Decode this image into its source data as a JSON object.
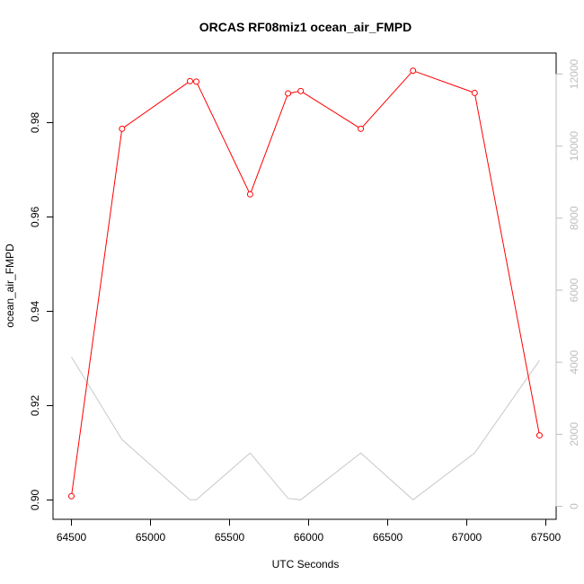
{
  "chart_data": {
    "type": "line",
    "title": "ORCAS RF08miz1 ocean_air_FMPD",
    "xlabel": "UTC Seconds",
    "ylabel": "ocean_air_FMPD",
    "xlim": [
      64500,
      67500
    ],
    "ylim": [
      0.9,
      0.992
    ],
    "y2lim": [
      0,
      12500
    ],
    "x_ticks": [
      "64500",
      "65000",
      "65500",
      "66000",
      "66500",
      "67000",
      "67500"
    ],
    "y_ticks": [
      "0.90",
      "0.92",
      "0.94",
      "0.96",
      "0.98"
    ],
    "y2_ticks": [
      "0",
      "2000",
      "4000",
      "6000",
      "8000",
      "10000",
      "12000"
    ],
    "series": [
      {
        "axis": "left",
        "color": "#ff0000",
        "markers": "open-circle",
        "x": [
          64500,
          64820,
          65250,
          65290,
          65630,
          65870,
          65950,
          66330,
          66660,
          67050,
          67460
        ],
        "y": [
          0.9008,
          0.9787,
          0.9888,
          0.9887,
          0.9648,
          0.9862,
          0.9867,
          0.9787,
          0.991,
          0.9863,
          0.9137
        ]
      },
      {
        "axis": "right",
        "color": "#c8c8c8",
        "markers": "none",
        "x": [
          64500,
          64820,
          65250,
          65290,
          65630,
          65870,
          65950,
          66330,
          66660,
          67050,
          67460
        ],
        "y": [
          4150,
          1850,
          180,
          180,
          1480,
          220,
          180,
          1480,
          180,
          1480,
          4050
        ]
      }
    ]
  }
}
